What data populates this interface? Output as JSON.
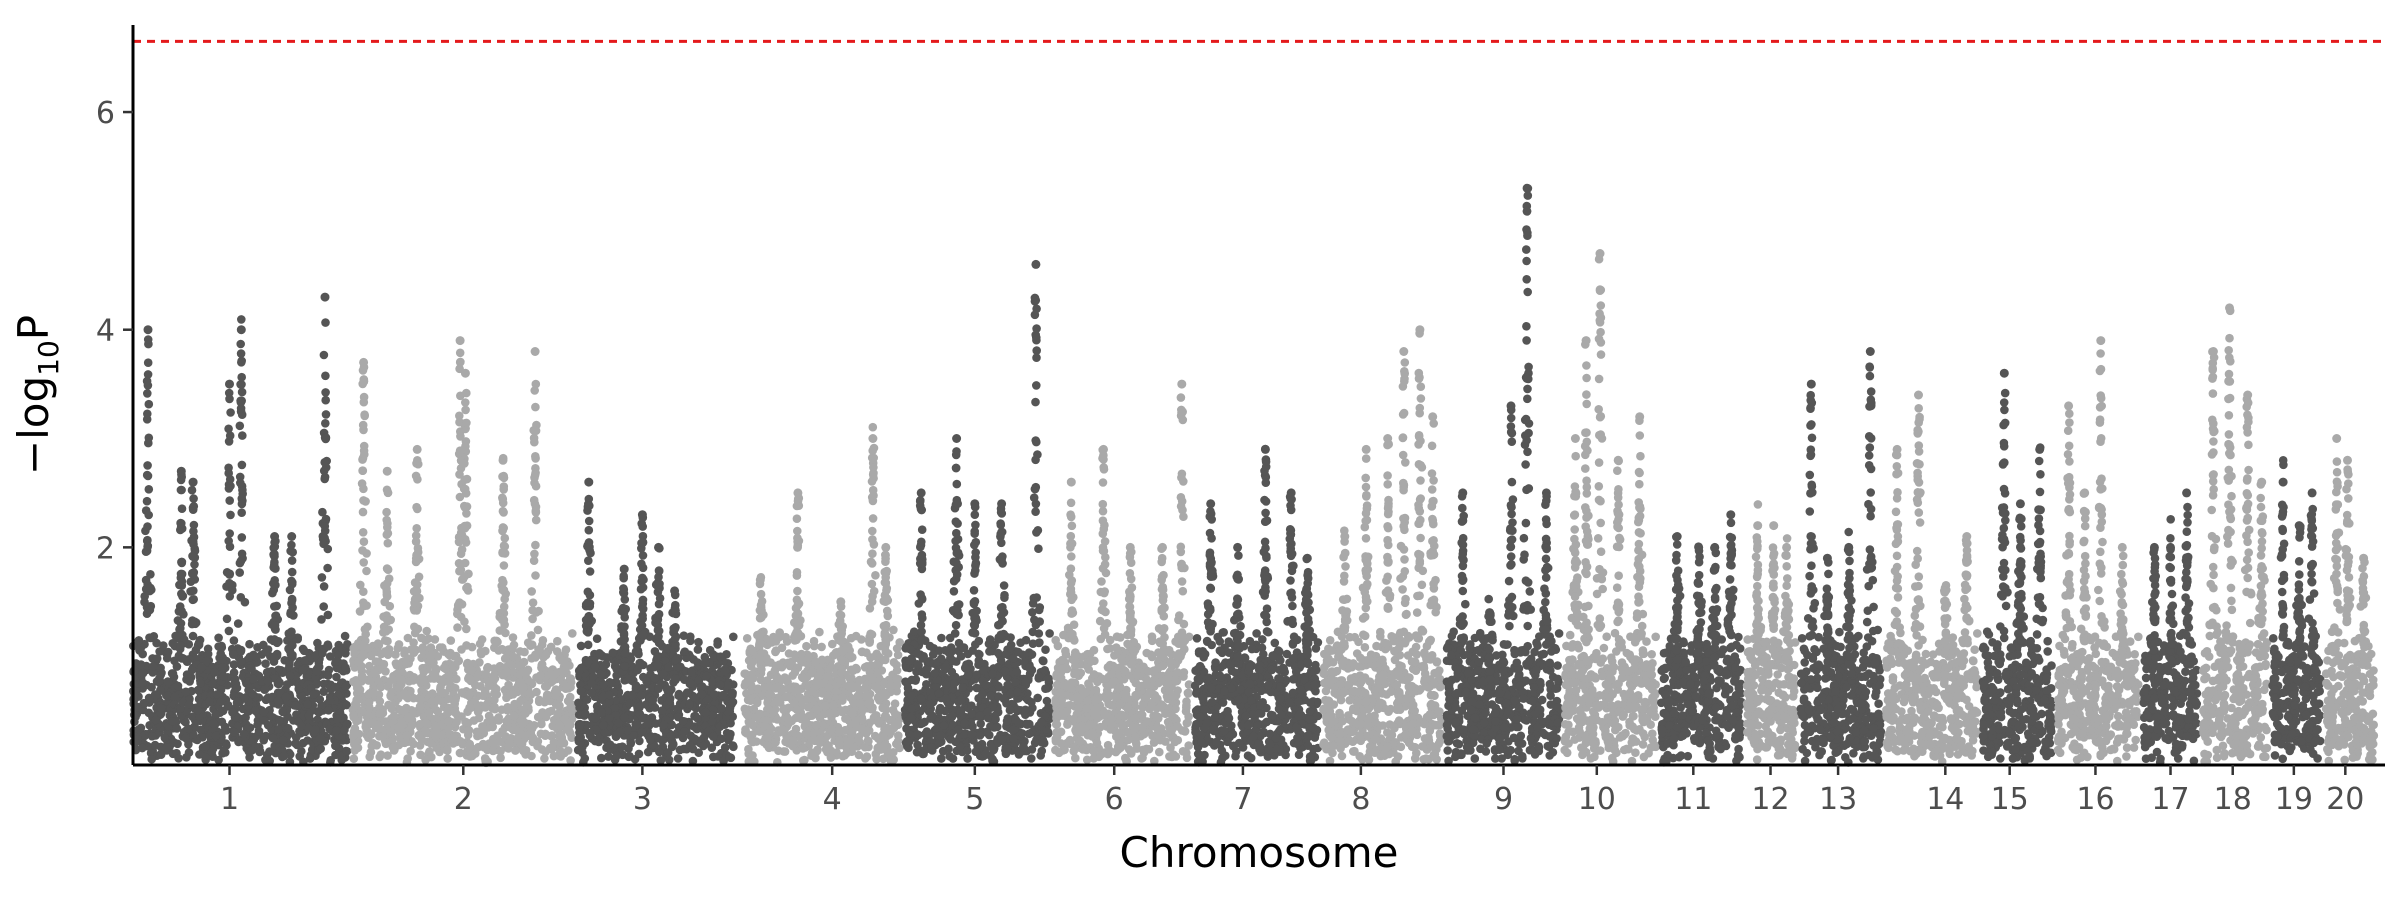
{
  "chart_data": {
    "type": "scatter",
    "subtype": "manhattan",
    "title": "",
    "xlabel": "Chromosome",
    "ylabel": "−log₁₀P",
    "ylabel_parts": {
      "prefix": "−log",
      "subscript": "10",
      "suffix": "P"
    },
    "ylim": [
      0,
      6.8
    ],
    "yticks": [
      2,
      4,
      6
    ],
    "ytick_labels": [
      "2",
      "4",
      "6"
    ],
    "threshold": {
      "value": 6.65,
      "color": "#e41a1c",
      "style": "dashed"
    },
    "colors": {
      "odd": "#555555",
      "even": "#a9a9a9"
    },
    "grid": false,
    "legend": "none",
    "chromosomes": [
      {
        "label": "1",
        "start": 0,
        "end": 200,
        "tick": 90,
        "peaks": [
          [
            14,
            4.0
          ],
          [
            45,
            2.7
          ],
          [
            56,
            2.6
          ],
          [
            90,
            3.5
          ],
          [
            101,
            4.0
          ],
          [
            132,
            2.1
          ],
          [
            148,
            2.1
          ],
          [
            179,
            4.3
          ]
        ]
      },
      {
        "label": "2",
        "start": 205,
        "end": 410,
        "tick": 308,
        "peaks": [
          [
            215,
            3.7
          ],
          [
            237,
            2.7
          ],
          [
            265,
            2.9
          ],
          [
            305,
            3.9
          ],
          [
            310,
            3.6
          ],
          [
            345,
            2.8
          ],
          [
            375,
            3.8
          ]
        ]
      },
      {
        "label": "3",
        "start": 415,
        "end": 560,
        "tick": 475,
        "peaks": [
          [
            425,
            2.6
          ],
          [
            458,
            1.8
          ],
          [
            475,
            2.3
          ],
          [
            490,
            2.0
          ],
          [
            505,
            1.6
          ]
        ]
      },
      {
        "label": "4",
        "start": 570,
        "end": 715,
        "tick": 652,
        "peaks": [
          [
            585,
            1.7
          ],
          [
            620,
            2.5
          ],
          [
            660,
            1.5
          ],
          [
            690,
            3.0
          ],
          [
            702,
            2.0
          ]
        ]
      },
      {
        "label": "5",
        "start": 720,
        "end": 855,
        "tick": 785,
        "peaks": [
          [
            735,
            2.5
          ],
          [
            768,
            3.0
          ],
          [
            785,
            2.4
          ],
          [
            810,
            2.4
          ],
          [
            842,
            4.6
          ]
        ]
      },
      {
        "label": "6",
        "start": 860,
        "end": 985,
        "tick": 915,
        "peaks": [
          [
            875,
            2.6
          ],
          [
            905,
            2.9
          ],
          [
            930,
            2.0
          ],
          [
            960,
            2.0
          ],
          [
            978,
            3.5
          ]
        ]
      },
      {
        "label": "7",
        "start": 990,
        "end": 1105,
        "tick": 1035,
        "peaks": [
          [
            1005,
            2.4
          ],
          [
            1030,
            2.0
          ],
          [
            1056,
            2.9
          ],
          [
            1080,
            2.5
          ],
          [
            1095,
            1.9
          ]
        ]
      },
      {
        "label": "8",
        "start": 1110,
        "end": 1220,
        "tick": 1145,
        "peaks": [
          [
            1130,
            2.1
          ],
          [
            1150,
            2.9
          ],
          [
            1170,
            3.0
          ],
          [
            1185,
            3.8
          ],
          [
            1200,
            4.0
          ],
          [
            1212,
            3.2
          ]
        ]
      },
      {
        "label": "9",
        "start": 1225,
        "end": 1330,
        "tick": 1278,
        "peaks": [
          [
            1240,
            2.5
          ],
          [
            1265,
            1.4
          ],
          [
            1285,
            3.3
          ],
          [
            1300,
            5.3
          ],
          [
            1318,
            2.5
          ]
        ]
      },
      {
        "label": "10",
        "start": 1335,
        "end": 1420,
        "tick": 1365,
        "peaks": [
          [
            1345,
            3.0
          ],
          [
            1355,
            3.9
          ],
          [
            1368,
            4.7
          ],
          [
            1385,
            2.8
          ],
          [
            1405,
            3.2
          ]
        ]
      },
      {
        "label": "11",
        "start": 1425,
        "end": 1500,
        "tick": 1455,
        "peaks": [
          [
            1440,
            2.1
          ],
          [
            1460,
            2.0
          ],
          [
            1475,
            2.0
          ],
          [
            1490,
            2.3
          ]
        ]
      },
      {
        "label": "12",
        "start": 1505,
        "end": 1550,
        "tick": 1527,
        "peaks": [
          [
            1515,
            2.2
          ],
          [
            1530,
            2.2
          ],
          [
            1542,
            2.0
          ]
        ]
      },
      {
        "label": "13",
        "start": 1555,
        "end": 1630,
        "tick": 1590,
        "peaks": [
          [
            1565,
            3.5
          ],
          [
            1580,
            1.9
          ],
          [
            1600,
            2.0
          ],
          [
            1620,
            3.8
          ]
        ]
      },
      {
        "label": "14",
        "start": 1635,
        "end": 1720,
        "tick": 1690,
        "peaks": [
          [
            1645,
            2.9
          ],
          [
            1665,
            3.4
          ],
          [
            1690,
            1.6
          ],
          [
            1710,
            2.1
          ]
        ]
      },
      {
        "label": "15",
        "start": 1725,
        "end": 1790,
        "tick": 1750,
        "peaks": [
          [
            1745,
            3.6
          ],
          [
            1760,
            2.4
          ],
          [
            1778,
            2.9
          ]
        ]
      },
      {
        "label": "16",
        "start": 1795,
        "end": 1870,
        "tick": 1830,
        "peaks": [
          [
            1805,
            3.3
          ],
          [
            1820,
            2.5
          ],
          [
            1835,
            3.9
          ],
          [
            1855,
            2.0
          ]
        ]
      },
      {
        "label": "17",
        "start": 1875,
        "end": 1925,
        "tick": 1900,
        "peaks": [
          [
            1885,
            2.0
          ],
          [
            1900,
            2.0
          ],
          [
            1915,
            2.5
          ]
        ]
      },
      {
        "label": "18",
        "start": 1930,
        "end": 1990,
        "tick": 1958,
        "peaks": [
          [
            1940,
            3.8
          ],
          [
            1955,
            4.2
          ],
          [
            1972,
            3.4
          ],
          [
            1985,
            2.6
          ]
        ]
      },
      {
        "label": "19",
        "start": 1995,
        "end": 2040,
        "tick": 2015,
        "peaks": [
          [
            2005,
            2.6
          ],
          [
            2020,
            2.2
          ],
          [
            2032,
            2.5
          ]
        ]
      },
      {
        "label": "20",
        "start": 2045,
        "end": 2090,
        "tick": 2063,
        "peaks": [
          [
            2055,
            3.0
          ],
          [
            2065,
            2.8
          ],
          [
            2080,
            1.9
          ]
        ]
      }
    ]
  }
}
